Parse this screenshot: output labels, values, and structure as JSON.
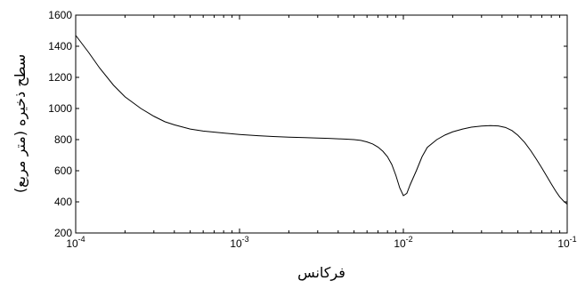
{
  "chart_data": {
    "type": "line",
    "title": "",
    "xlabel": "فرکانس",
    "ylabel": "سطح ذخیره (متر مربع)",
    "xscale": "log",
    "xlim": [
      0.0001,
      0.1
    ],
    "ylim": [
      200,
      1600
    ],
    "grid": false,
    "x_ticks": [
      {
        "value": 0.0001,
        "base": "10",
        "exp": "-4"
      },
      {
        "value": 0.001,
        "base": "10",
        "exp": "-3"
      },
      {
        "value": 0.01,
        "base": "10",
        "exp": "-2"
      },
      {
        "value": 0.1,
        "base": "10",
        "exp": "-1"
      }
    ],
    "y_ticks": [
      200,
      400,
      600,
      800,
      1000,
      1200,
      1400,
      1600
    ],
    "series": [
      {
        "color": "#000000",
        "x": [
          0.0001,
          0.00012,
          0.00014,
          0.00017,
          0.0002,
          0.00025,
          0.0003,
          0.00035,
          0.0004,
          0.0005,
          0.0006,
          0.0008,
          0.001,
          0.0013,
          0.0016,
          0.002,
          0.0025,
          0.003,
          0.0035,
          0.004,
          0.0045,
          0.005,
          0.0055,
          0.006,
          0.0065,
          0.007,
          0.0075,
          0.008,
          0.0085,
          0.009,
          0.0095,
          0.01,
          0.0105,
          0.011,
          0.012,
          0.013,
          0.014,
          0.016,
          0.018,
          0.02,
          0.023,
          0.026,
          0.03,
          0.034,
          0.038,
          0.042,
          0.046,
          0.05,
          0.055,
          0.06,
          0.065,
          0.07,
          0.075,
          0.08,
          0.085,
          0.09,
          0.095,
          0.1
        ],
        "y": [
          1470,
          1360,
          1260,
          1150,
          1075,
          1000,
          950,
          915,
          895,
          868,
          855,
          842,
          833,
          825,
          820,
          816,
          813,
          810,
          808,
          805,
          803,
          800,
          795,
          785,
          772,
          752,
          725,
          690,
          640,
          570,
          490,
          440,
          455,
          510,
          600,
          690,
          750,
          800,
          830,
          850,
          868,
          880,
          887,
          890,
          888,
          878,
          858,
          828,
          782,
          728,
          672,
          618,
          565,
          515,
          470,
          432,
          405,
          385
        ]
      }
    ]
  }
}
